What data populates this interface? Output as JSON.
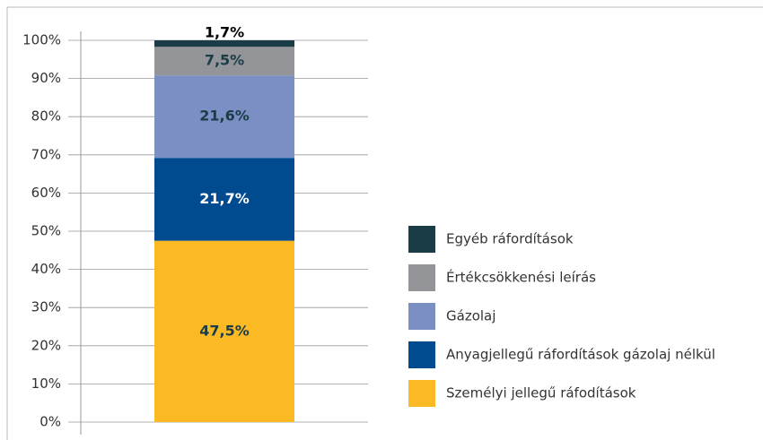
{
  "chart_data": {
    "type": "stacked_bar",
    "categories": [
      null
    ],
    "series": [
      {
        "name": "Személyi jellegű ráfodítások",
        "color": "#fbb923",
        "values": [
          47.5
        ],
        "value_labels": [
          "47,5%"
        ],
        "label_color": "#1a3c47"
      },
      {
        "name": "Anyagjellegű ráfordítások gázolaj nélkül",
        "color": "#004a8f",
        "values": [
          21.7
        ],
        "value_labels": [
          "21,7%"
        ],
        "label_color": "#ffffff"
      },
      {
        "name": "Gázolaj",
        "color": "#7b8fc4",
        "values": [
          21.6
        ],
        "value_labels": [
          "21,6%"
        ],
        "label_color": "#1a3c47"
      },
      {
        "name": "Értékcsökkenési leírás",
        "color": "#939598",
        "values": [
          7.5
        ],
        "value_labels": [
          "7,5%"
        ],
        "label_color": "#1a3c47"
      },
      {
        "name": "Egyéb ráfordítások",
        "color": "#1a3c47",
        "values": [
          1.7
        ],
        "value_labels": [
          "1,7%"
        ],
        "label_color": "#000000"
      }
    ],
    "ylim": [
      0,
      100
    ],
    "yticks": [
      {
        "value": 0,
        "label": "0%"
      },
      {
        "value": 10,
        "label": "10%"
      },
      {
        "value": 20,
        "label": "20%"
      },
      {
        "value": 30,
        "label": "30%"
      },
      {
        "value": 40,
        "label": "40%"
      },
      {
        "value": 50,
        "label": "50%"
      },
      {
        "value": 60,
        "label": "60%"
      },
      {
        "value": 70,
        "label": "70%"
      },
      {
        "value": 80,
        "label": "80%"
      },
      {
        "value": 90,
        "label": "90%"
      },
      {
        "value": 100,
        "label": "100%"
      }
    ],
    "grid": true,
    "legend": "right"
  }
}
